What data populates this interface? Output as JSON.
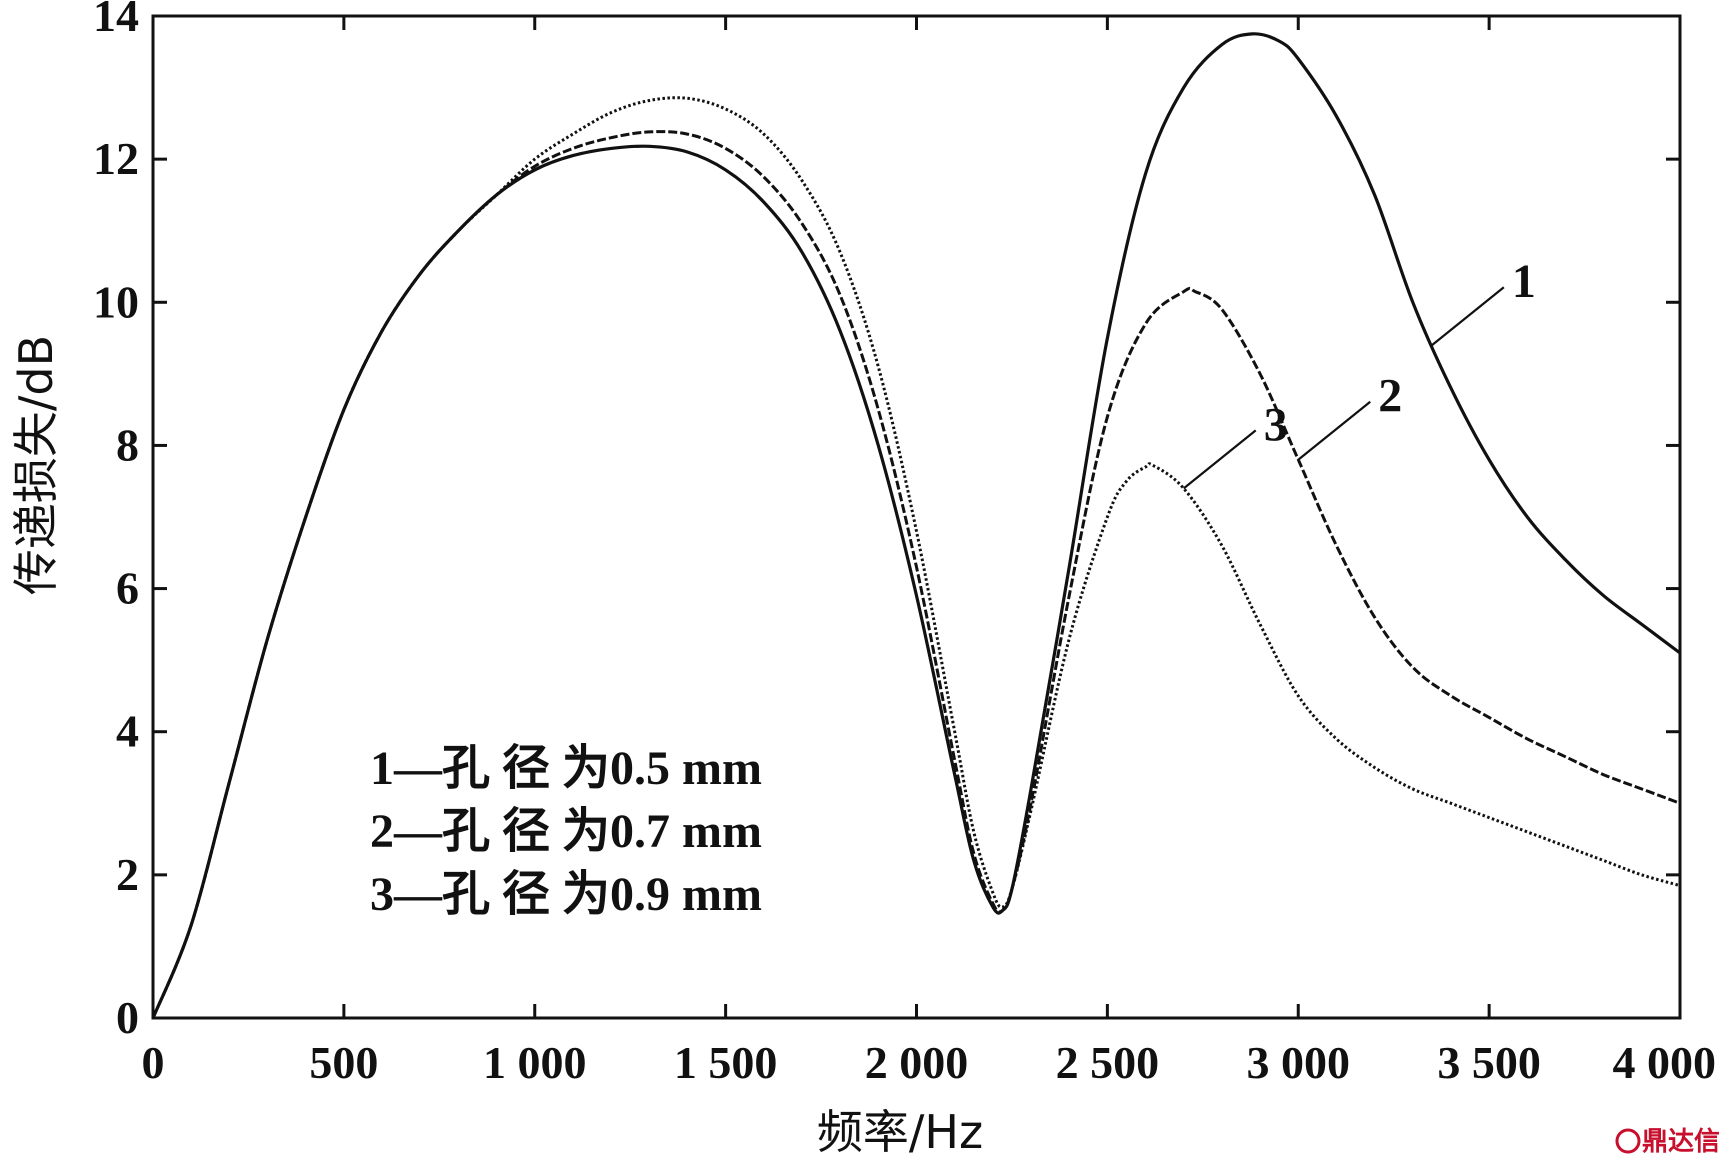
{
  "chart_data": {
    "type": "line",
    "title": "",
    "xlabel": "频率/Hz",
    "ylabel": "传递损失/dB",
    "xlim": [
      0,
      4000
    ],
    "ylim": [
      0,
      14
    ],
    "xticks": [
      0,
      500,
      1000,
      1500,
      2000,
      2500,
      3000,
      3500,
      4000
    ],
    "xtick_labels": [
      "0",
      "500",
      "1 000",
      "1 500",
      "2 000",
      "2 500",
      "3 000",
      "3 500",
      "4 000"
    ],
    "yticks": [
      0,
      2,
      4,
      6,
      8,
      10,
      12,
      14
    ],
    "ytick_labels": [
      "0",
      "2",
      "4",
      "6",
      "8",
      "10",
      "12",
      "14"
    ],
    "grid": false,
    "legend_placement": "lower-left",
    "legend": [
      "1—孔 径 为0.5 mm",
      "2—孔 径 为0.7 mm",
      "3—孔 径 为0.9 mm"
    ],
    "series": [
      {
        "name": "1",
        "style": "solid",
        "x": [
          0,
          100,
          200,
          300,
          400,
          500,
          600,
          700,
          800,
          900,
          1000,
          1100,
          1200,
          1300,
          1400,
          1500,
          1600,
          1700,
          1800,
          1900,
          2000,
          2100,
          2150,
          2200,
          2225,
          2250,
          2300,
          2400,
          2500,
          2600,
          2700,
          2800,
          2880,
          2950,
          3000,
          3100,
          3200,
          3300,
          3400,
          3500,
          3600,
          3700,
          3800,
          3900,
          4000
        ],
        "y": [
          0,
          1.3,
          3.3,
          5.3,
          7.0,
          8.5,
          9.6,
          10.4,
          11.0,
          11.5,
          11.85,
          12.05,
          12.15,
          12.18,
          12.1,
          11.85,
          11.4,
          10.7,
          9.6,
          8.0,
          5.9,
          3.4,
          2.2,
          1.55,
          1.5,
          1.8,
          3.2,
          6.3,
          9.5,
          11.8,
          13.0,
          13.6,
          13.75,
          13.65,
          13.4,
          12.6,
          11.5,
          10.0,
          8.8,
          7.8,
          7.0,
          6.4,
          5.9,
          5.5,
          5.1
        ]
      },
      {
        "name": "2",
        "style": "dashed",
        "x": [
          0,
          100,
          200,
          300,
          400,
          500,
          600,
          700,
          800,
          900,
          1000,
          1100,
          1200,
          1300,
          1400,
          1500,
          1600,
          1700,
          1800,
          1900,
          2000,
          2100,
          2150,
          2200,
          2225,
          2250,
          2300,
          2400,
          2500,
          2600,
          2700,
          2730,
          2800,
          2900,
          3000,
          3100,
          3200,
          3300,
          3400,
          3500,
          3600,
          3700,
          3800,
          3900,
          4000
        ],
        "y": [
          0,
          1.3,
          3.3,
          5.3,
          7.0,
          8.5,
          9.6,
          10.4,
          11.0,
          11.5,
          11.9,
          12.15,
          12.3,
          12.38,
          12.35,
          12.15,
          11.75,
          11.1,
          10.1,
          8.5,
          6.3,
          3.6,
          2.3,
          1.6,
          1.5,
          1.8,
          3.0,
          5.9,
          8.4,
          9.7,
          10.15,
          10.15,
          9.9,
          9.0,
          7.8,
          6.6,
          5.6,
          4.9,
          4.5,
          4.2,
          3.9,
          3.65,
          3.4,
          3.2,
          3.0
        ]
      },
      {
        "name": "3",
        "style": "dotted",
        "x": [
          0,
          100,
          200,
          300,
          400,
          500,
          600,
          700,
          800,
          900,
          1000,
          1100,
          1200,
          1300,
          1400,
          1500,
          1600,
          1700,
          1800,
          1900,
          2000,
          2100,
          2150,
          2200,
          2225,
          2250,
          2300,
          2400,
          2500,
          2550,
          2600,
          2620,
          2700,
          2800,
          2900,
          3000,
          3100,
          3200,
          3300,
          3400,
          3500,
          3600,
          3700,
          3800,
          3900,
          4000
        ],
        "y": [
          0,
          1.3,
          3.3,
          5.3,
          7.0,
          8.5,
          9.6,
          10.4,
          11.0,
          11.5,
          12.0,
          12.35,
          12.65,
          12.82,
          12.85,
          12.7,
          12.35,
          11.7,
          10.7,
          9.1,
          6.8,
          4.0,
          2.6,
          1.75,
          1.55,
          1.8,
          2.9,
          5.3,
          7.0,
          7.5,
          7.7,
          7.72,
          7.4,
          6.6,
          5.5,
          4.5,
          3.9,
          3.5,
          3.2,
          3.0,
          2.8,
          2.6,
          2.4,
          2.2,
          2.0,
          1.85
        ]
      }
    ],
    "callouts": [
      {
        "label": "1",
        "series": "1",
        "at_x": 3350
      },
      {
        "label": "2",
        "series": "2",
        "at_x": 3000
      },
      {
        "label": "3",
        "series": "3",
        "at_x": 2700
      }
    ]
  },
  "watermark": "鼎达信"
}
